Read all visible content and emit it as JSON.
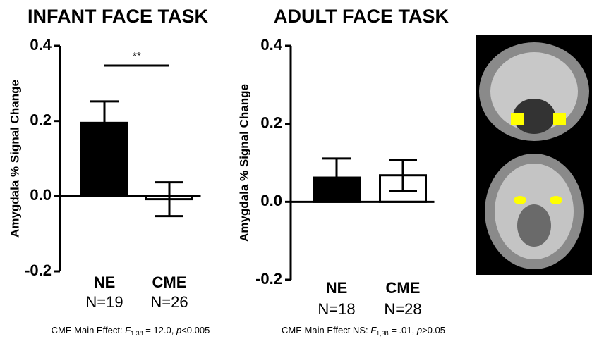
{
  "chart_data": [
    {
      "type": "bar",
      "title": "INFANT FACE TASK",
      "y_label": "Amygdala % Signal Change",
      "categories": [
        "NE",
        "CME"
      ],
      "category_sublabels": [
        "N=19",
        "N=26"
      ],
      "values": [
        0.195,
        -0.008
      ],
      "errors": [
        0.057,
        0.045
      ],
      "colors": [
        "#000000",
        "#ffffff"
      ],
      "ylim": [
        -0.2,
        0.4
      ],
      "yticks": [
        -0.2,
        {
          "value": 0,
          "label": "0.0"
        },
        0.2,
        0.4
      ],
      "significance": "**",
      "note": {
        "prefix": "CME Main Effect: ",
        "stat": "F",
        "subscript": "1,38",
        "rest": " = 12.0, ",
        "p": "p",
        "tail": "<0.005"
      }
    },
    {
      "type": "bar",
      "title": "ADULT FACE TASK",
      "y_label": "Amygdala % Signal Change",
      "categories": [
        "NE",
        "CME"
      ],
      "category_sublabels": [
        "N=18",
        "N=28"
      ],
      "values": [
        0.062,
        0.068
      ],
      "errors": [
        0.049,
        0.04
      ],
      "colors": [
        "#000000",
        "#ffffff"
      ],
      "ylim": [
        -0.2,
        0.4
      ],
      "yticks": [
        -0.2,
        {
          "value": 0,
          "label": "0.0"
        },
        0.2,
        0.4
      ],
      "note": {
        "prefix": "CME Main Effect NS: ",
        "stat": "F",
        "subscript": "1,38",
        "rest": " = .01, ",
        "p": "p",
        "tail": ">0.05"
      }
    }
  ]
}
